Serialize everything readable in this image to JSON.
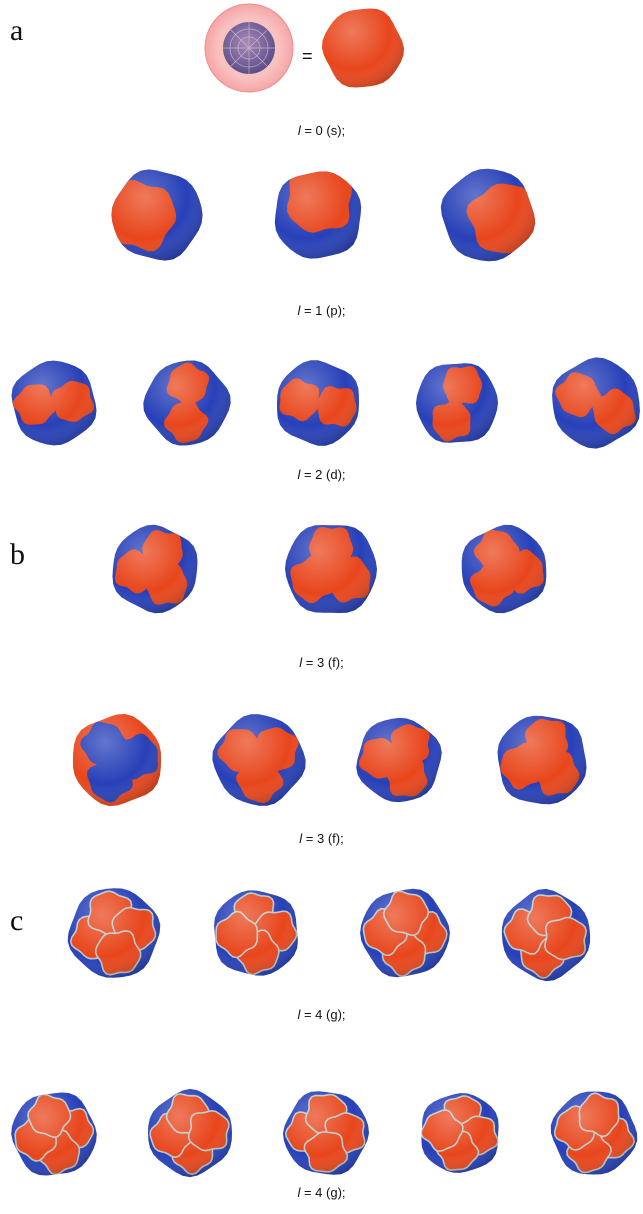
{
  "panels": [
    "a",
    "b",
    "c"
  ],
  "equals": "=",
  "rows": [
    {
      "id": "s",
      "symbol": "l",
      "rest": " = 0 (s);",
      "count": 2
    },
    {
      "id": "p",
      "symbol": "l",
      "rest": " = 1 (p);",
      "count": 3
    },
    {
      "id": "d",
      "symbol": "l",
      "rest": " = 2 (d);",
      "count": 5
    },
    {
      "id": "f1",
      "symbol": "l",
      "rest": " = 3 (f);",
      "count": 3
    },
    {
      "id": "f2",
      "symbol": "l",
      "rest": " = 3 (f);",
      "count": 4
    },
    {
      "id": "g1",
      "symbol": "l",
      "rest": " = 4 (g);",
      "count": 4
    },
    {
      "id": "g2",
      "symbol": "l",
      "rest": " = 4 (g);",
      "count": 5
    }
  ],
  "colors": {
    "lobe_positive": "#e8461c",
    "lobe_negative": "#2740b8",
    "mesh": "#f08080"
  }
}
